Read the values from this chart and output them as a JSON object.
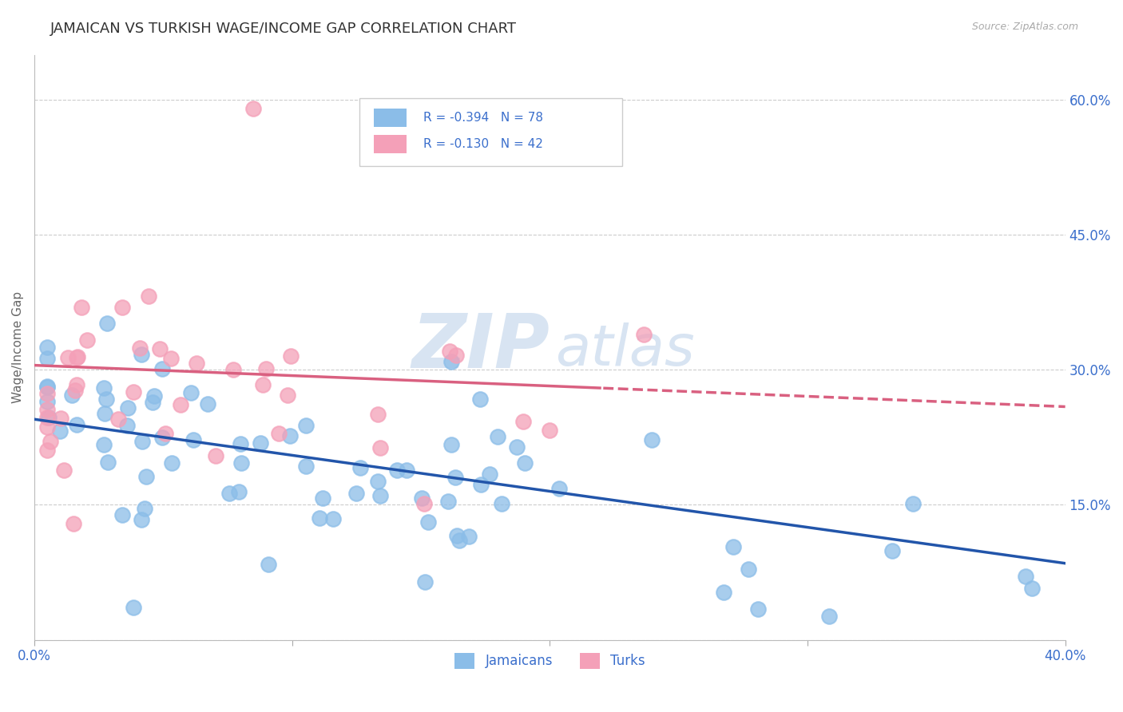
{
  "title": "JAMAICAN VS TURKISH WAGE/INCOME GAP CORRELATION CHART",
  "source": "Source: ZipAtlas.com",
  "ylabel": "Wage/Income Gap",
  "xmin": 0.0,
  "xmax": 0.4,
  "ymin": 0.0,
  "ymax": 0.65,
  "legend_r1": "R = -0.394",
  "legend_n1": "N = 78",
  "legend_r2": "R = -0.130",
  "legend_n2": "N = 42",
  "color_jamaican": "#8BBDE8",
  "color_turk": "#F4A0B8",
  "color_blue_text": "#3B6FCC",
  "color_line_jamaican": "#2255AA",
  "color_line_turk": "#D96080",
  "watermark_zip": "ZIP",
  "watermark_atlas": "atlas",
  "watermark_color": "#D8E4F2",
  "jam_intercept": 0.245,
  "jam_slope": -0.4,
  "turk_intercept": 0.305,
  "turk_slope": -0.115,
  "jam_seed": 7,
  "turk_seed": 13
}
